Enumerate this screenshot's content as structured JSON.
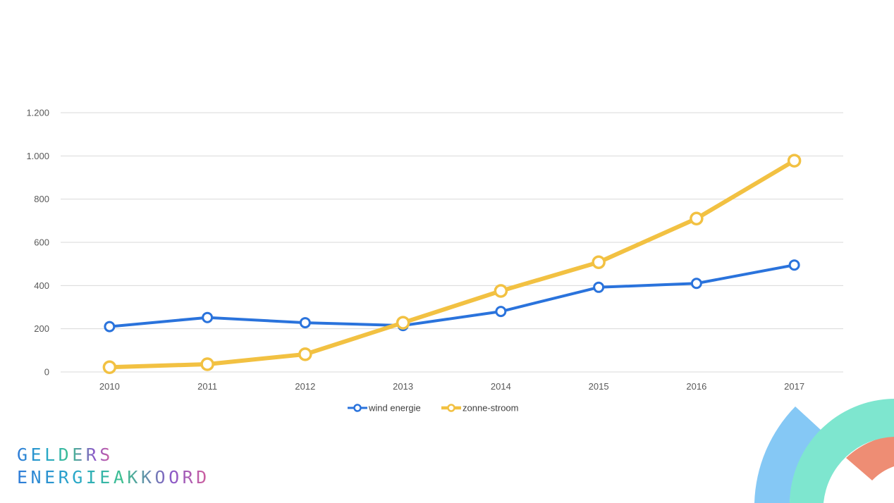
{
  "colors": {
    "wind": "#2a73dc",
    "sun": "#f2c142",
    "grid": "#d9d9d9",
    "deco_blue": "#85c8f5",
    "deco_mint": "#7ee6cf",
    "deco_salmon": "#ee8d74"
  },
  "logo": {
    "line1": "GELDERS",
    "line2": "ENERGIEAKKOORD"
  },
  "chart_data": {
    "type": "line",
    "x": [
      "2010",
      "2011",
      "2012",
      "2013",
      "2014",
      "2015",
      "2016",
      "2017"
    ],
    "y_ticks": [
      {
        "value": 0,
        "label": "0"
      },
      {
        "value": 200,
        "label": "200"
      },
      {
        "value": 400,
        "label": "400"
      },
      {
        "value": 600,
        "label": "600"
      },
      {
        "value": 800,
        "label": "800"
      },
      {
        "value": 1000,
        "label": "1.000"
      },
      {
        "value": 1200,
        "label": "1.200"
      }
    ],
    "ylim": [
      0,
      1200
    ],
    "grid": "horizontal",
    "legend_position": "bottom",
    "series": [
      {
        "name": "wind energie",
        "color": "#2a73dc",
        "values": [
          210,
          252,
          228,
          215,
          280,
          392,
          410,
          495
        ]
      },
      {
        "name": "zonne-stroom",
        "color": "#f2c142",
        "values": [
          22,
          36,
          82,
          228,
          375,
          508,
          710,
          978
        ]
      }
    ]
  }
}
